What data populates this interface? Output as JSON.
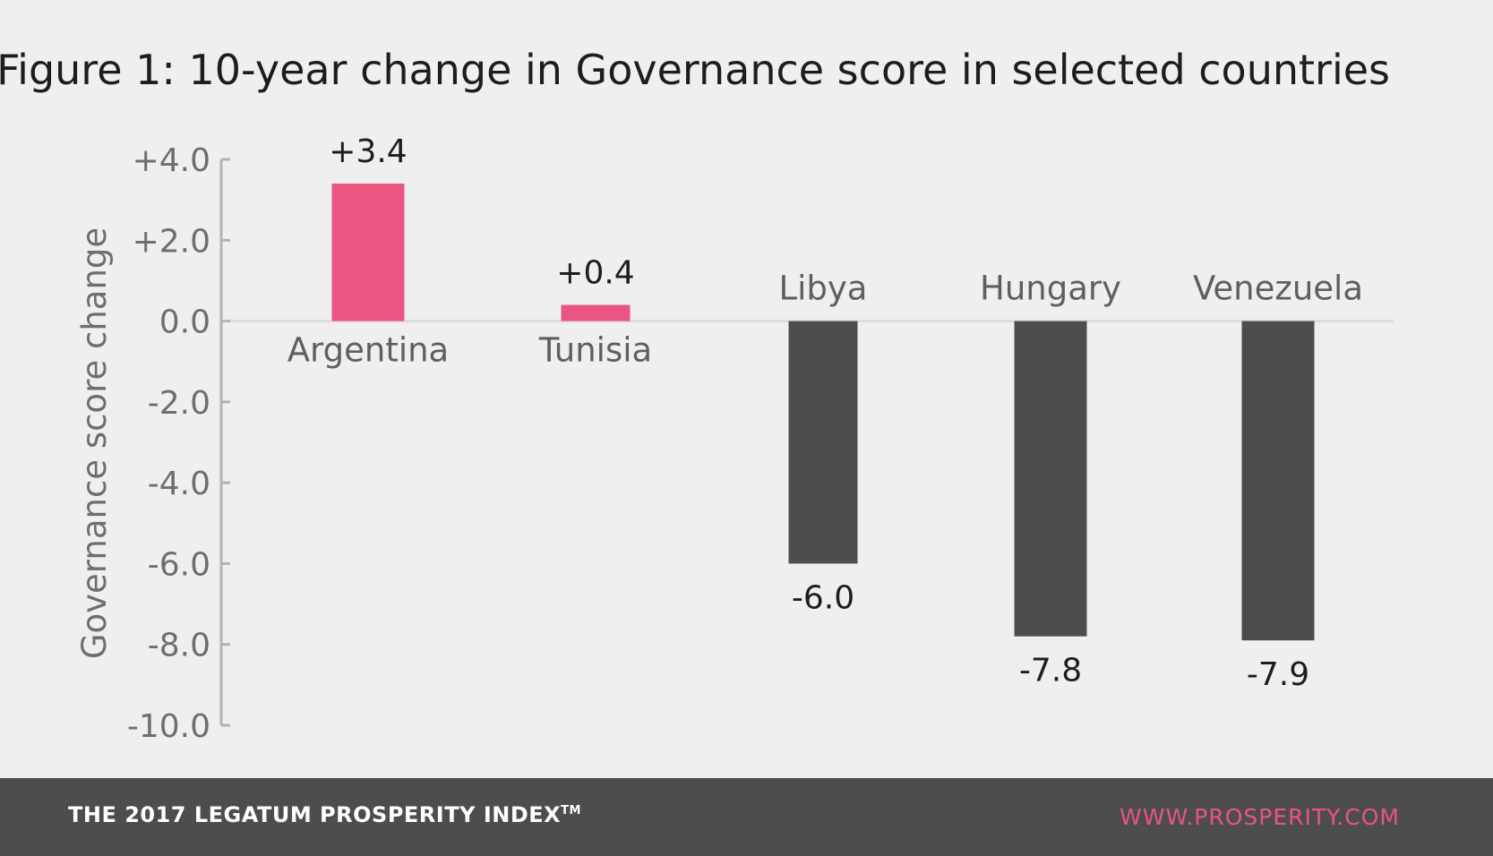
{
  "chart_data": {
    "type": "bar",
    "title": "Figure 1: 10-year change in Governance score in selected countries",
    "ylabel": "Governance score change",
    "xlabel": "",
    "ylim": [
      -10,
      4
    ],
    "yticks": [
      4,
      2,
      0,
      -2,
      -4,
      -6,
      -8,
      -10
    ],
    "ytick_labels": [
      "+4.0",
      "+2.0",
      "0.0",
      "-2.0",
      "-4.0",
      "-6.0",
      "-8.0",
      "-10.0"
    ],
    "grid": false,
    "categories": [
      "Argentina",
      "Tunisia",
      "Libya",
      "Hungary",
      "Venezuela"
    ],
    "values": [
      3.4,
      0.4,
      -6.0,
      -7.8,
      -7.9
    ],
    "value_labels": [
      "+3.4",
      "+0.4",
      "-6.0",
      "-7.8",
      "-7.9"
    ],
    "colors": {
      "positive": "#ea5581",
      "negative": "#4d4d4d",
      "axis": "#b3b3b3",
      "zero_line": "#dcdcdc"
    }
  },
  "footer": {
    "left_text": "THE 2017 LEGATUM PROSPERITY INDEX",
    "left_mark": "TM",
    "right_text": "WWW.PROSPERITY.COM"
  }
}
